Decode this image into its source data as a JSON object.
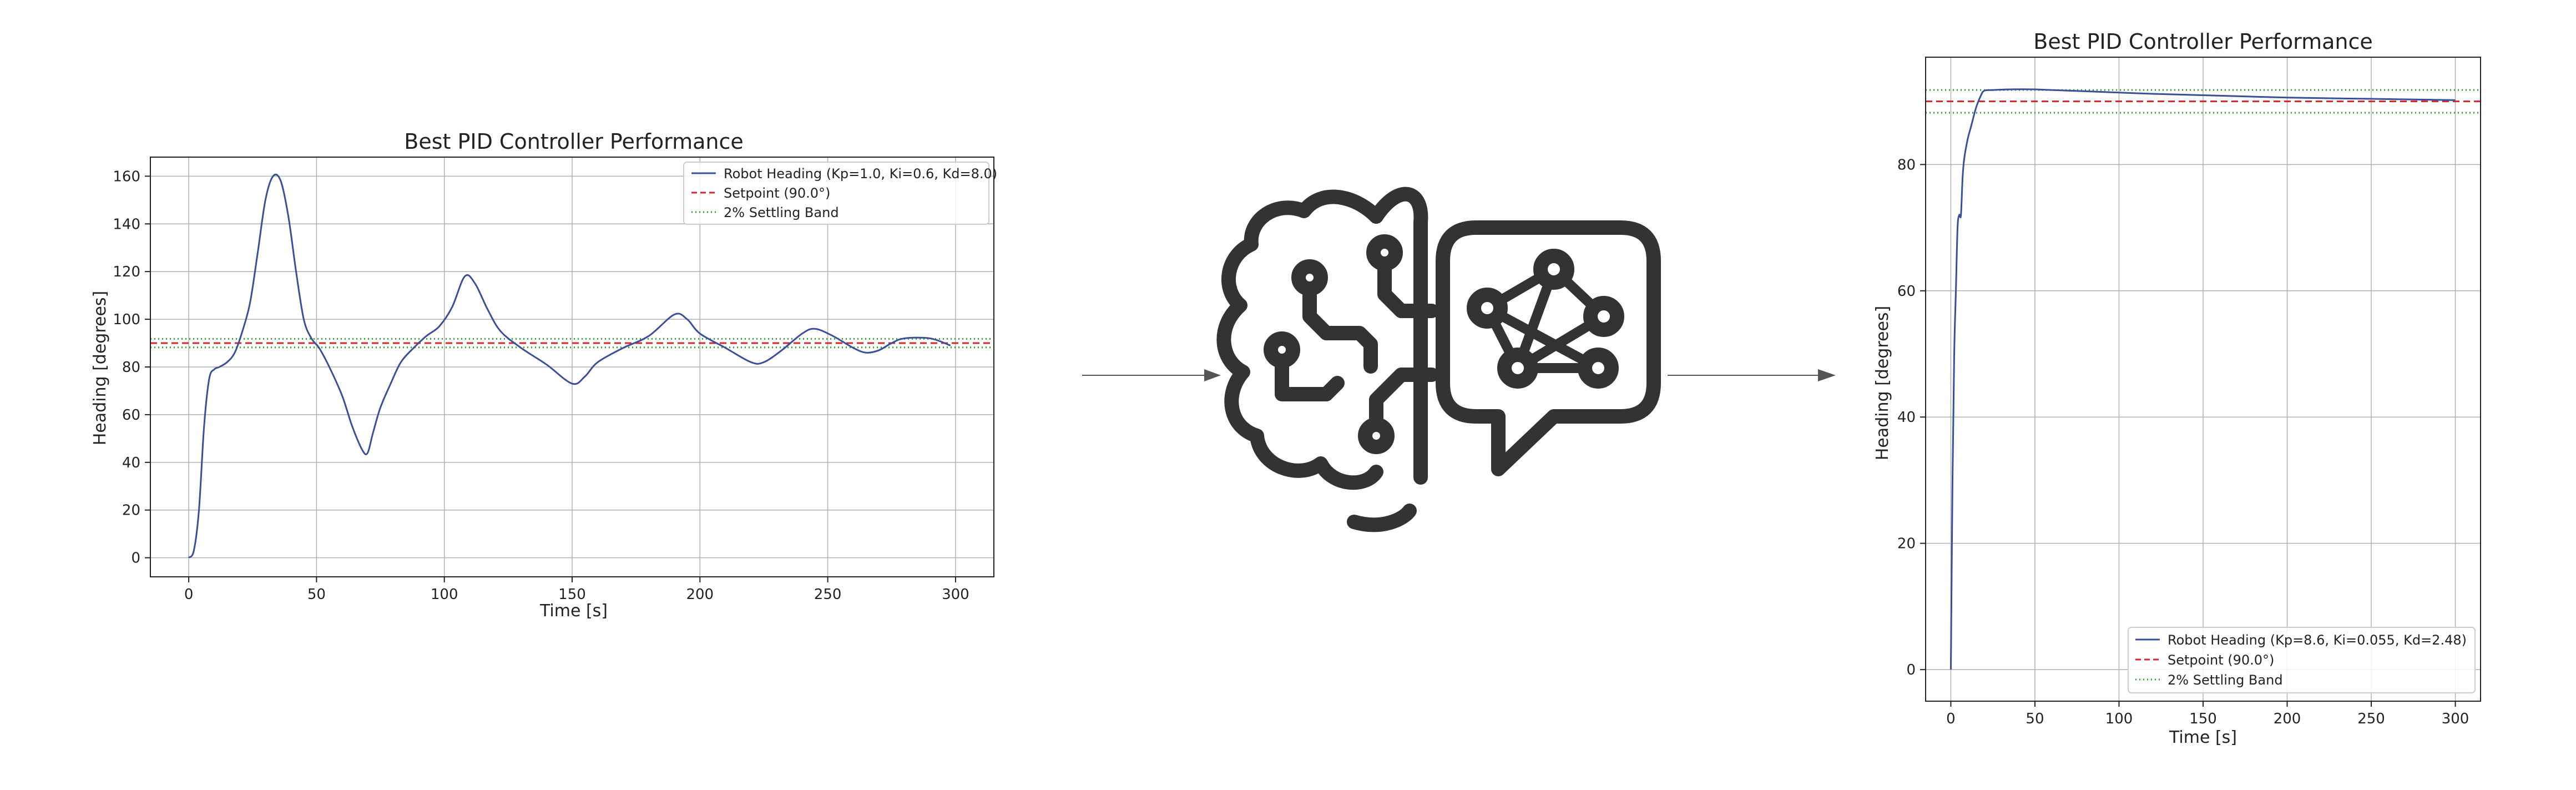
{
  "colors": {
    "heading": "#3a4f9a",
    "setpoint": "#d62728",
    "band": "#2ca02c",
    "grid": "#b0b0b0",
    "icon": "#333333",
    "arrow": "#555555"
  },
  "center_icon": "ai-brain-network-chat-icon",
  "chart_data": [
    {
      "type": "line",
      "title": "Best PID Controller Performance",
      "xlabel": "Time [s]",
      "ylabel": "Heading [degrees]",
      "xlim": [
        -15,
        315
      ],
      "ylim": [
        -8,
        168
      ],
      "xticks": [
        0,
        50,
        100,
        150,
        200,
        250,
        300
      ],
      "yticks": [
        0,
        20,
        40,
        60,
        80,
        100,
        120,
        140,
        160
      ],
      "grid": true,
      "legend_position": "top-right",
      "legend": [
        "Robot Heading (Kp=1.0, Ki=0.6, Kd=8.0)",
        "Setpoint (90.0°)",
        "2% Settling Band"
      ],
      "setpoint": 90.0,
      "band": [
        88.2,
        91.8
      ],
      "series": [
        {
          "name": "Robot Heading (Kp=1.0, Ki=0.6, Kd=8.0)",
          "x": [
            0,
            2,
            4,
            6,
            8,
            10,
            12,
            15,
            18,
            21,
            24,
            27,
            30,
            33,
            36,
            39,
            42,
            45,
            48,
            51,
            55,
            60,
            64,
            68,
            70,
            72,
            75,
            79,
            83,
            88,
            93,
            98,
            103,
            108,
            112,
            117,
            122,
            130,
            140,
            150,
            155,
            160,
            170,
            180,
            190,
            195,
            200,
            210,
            220,
            225,
            232,
            240,
            245,
            252,
            260,
            265,
            270,
            275,
            280,
            290,
            298
          ],
          "y": [
            0,
            3,
            20,
            55,
            75,
            79,
            80,
            82,
            86,
            95,
            107,
            128,
            150,
            160,
            158,
            143,
            120,
            100,
            92,
            88,
            80,
            68,
            55,
            45,
            44,
            52,
            63,
            73,
            82,
            88,
            93,
            97,
            105,
            118,
            115,
            104,
            95,
            88,
            81,
            73,
            76,
            82,
            88,
            93,
            102,
            100,
            94,
            88,
            82,
            82,
            87,
            94,
            96,
            93,
            88,
            86,
            87,
            90,
            92,
            92,
            89
          ]
        }
      ]
    },
    {
      "type": "line",
      "title": "Best PID Controller Performance",
      "xlabel": "Time [s]",
      "ylabel": "Heading [degrees]",
      "xlim": [
        -15,
        315
      ],
      "ylim": [
        -5,
        97
      ],
      "xticks": [
        0,
        50,
        100,
        150,
        200,
        250,
        300
      ],
      "yticks": [
        0,
        20,
        40,
        60,
        80
      ],
      "grid": true,
      "legend_position": "bottom-right",
      "legend": [
        "Robot Heading (Kp=8.6, Ki=0.055, Kd=2.48)",
        "Setpoint (90.0°)",
        "2% Settling Band"
      ],
      "setpoint": 90.0,
      "band": [
        88.2,
        91.8
      ],
      "series": [
        {
          "name": "Robot Heading (Kp=8.6, Ki=0.055, Kd=2.48)",
          "x": [
            0,
            1,
            2,
            3,
            4,
            5,
            6,
            7,
            8,
            10,
            12,
            15,
            18,
            20,
            25,
            35,
            50,
            80,
            120,
            160,
            200,
            250,
            300
          ],
          "y": [
            0,
            30,
            50,
            60,
            70,
            72,
            72,
            78,
            81,
            84,
            86,
            89,
            91,
            91.7,
            91.8,
            91.9,
            91.9,
            91.6,
            91.2,
            90.9,
            90.6,
            90.4,
            90.2
          ]
        }
      ]
    }
  ]
}
